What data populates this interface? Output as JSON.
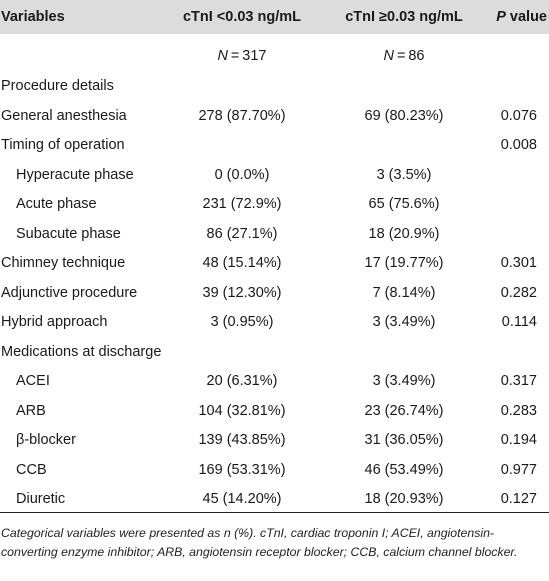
{
  "header": {
    "variables": "Variables",
    "col_low": "cTnI <0.03 ng/mL",
    "col_high": "cTnI ≥0.03 ng/mL",
    "p_italic": "P",
    "p_rest": " value"
  },
  "n_row": {
    "low_label": "N",
    "low_value": " = 317",
    "high_label": "N",
    "high_value": " = 86"
  },
  "rows": [
    {
      "label": "Procedure details",
      "low": "",
      "high": "",
      "p": ""
    },
    {
      "label": "General anesthesia",
      "low": "278 (87.70%)",
      "high": "69 (80.23%)",
      "p": "0.076"
    },
    {
      "label": "Timing of operation",
      "low": "",
      "high": "",
      "p": "0.008"
    },
    {
      "label": "Hyperacute phase",
      "low": "0 (0.0%)",
      "high": "3 (3.5%)",
      "p": ""
    },
    {
      "label": "Acute phase",
      "low": "231 (72.9%)",
      "high": "65 (75.6%)",
      "p": ""
    },
    {
      "label": "Subacute phase",
      "low": "86 (27.1%)",
      "high": "18 (20.9%)",
      "p": ""
    },
    {
      "label": "Chimney technique",
      "low": "48 (15.14%)",
      "high": "17 (19.77%)",
      "p": "0.301"
    },
    {
      "label": "Adjunctive procedure",
      "low": "39 (12.30%)",
      "high": "7 (8.14%)",
      "p": "0.282"
    },
    {
      "label": "Hybrid approach",
      "low": "3 (0.95%)",
      "high": "3 (3.49%)",
      "p": "0.114"
    },
    {
      "label": "Medications at discharge",
      "low": "",
      "high": "",
      "p": ""
    },
    {
      "label": "ACEI",
      "low": "20 (6.31%)",
      "high": "3 (3.49%)",
      "p": "0.317"
    },
    {
      "label": "ARB",
      "low": "104 (32.81%)",
      "high": "23 (26.74%)",
      "p": "0.283"
    },
    {
      "label": "β-blocker",
      "low": "139 (43.85%)",
      "high": "31 (36.05%)",
      "p": "0.194"
    },
    {
      "label": "CCB",
      "low": "169 (53.31%)",
      "high": "46 (53.49%)",
      "p": "0.977"
    },
    {
      "label": "Diuretic",
      "low": "45 (14.20%)",
      "high": "18 (20.93%)",
      "p": "0.127"
    }
  ],
  "footnote": "Categorical variables were presented as n (%). cTnI, cardiac troponin I; ACEI, angiotensin-converting enzyme inhibitor; ARB, angiotensin receptor blocker; CCB, calcium channel blocker."
}
